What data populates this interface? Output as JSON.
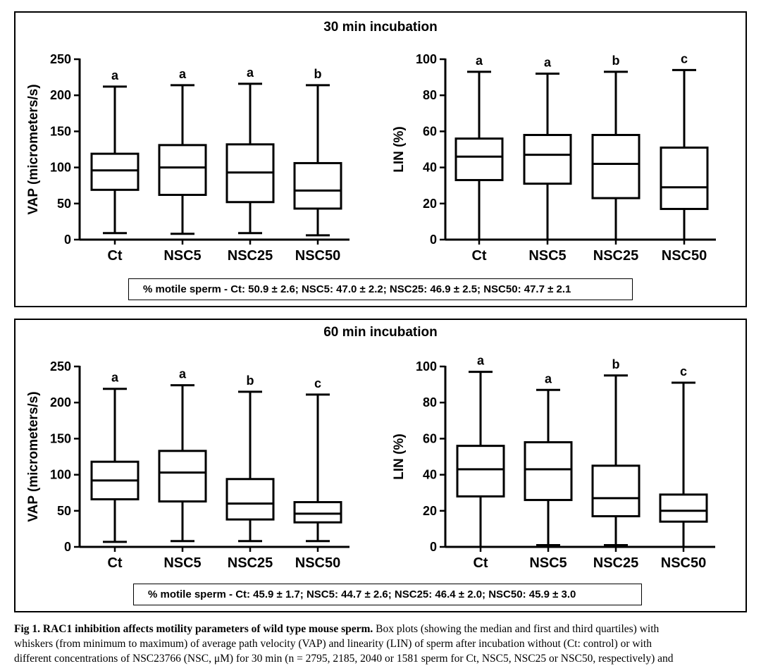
{
  "panels": [
    {
      "title": "30 min incubation",
      "summary": "% motile sperm - Ct: 50.9 ± 2.6; NSC5: 47.0 ± 2.2; NSC25: 46.9 ± 2.5; NSC50: 47.7 ± 2.1"
    },
    {
      "title": "60 min incubation",
      "summary": "% motile sperm - Ct: 45.9 ± 1.7; NSC5: 44.7 ± 2.6; NSC25: 46.4 ± 2.0; NSC50: 45.9 ± 3.0"
    }
  ],
  "caption": {
    "title": "Fig 1. RAC1 inhibition affects motility parameters of wild type mouse sperm.",
    "line1": "Box plots (showing the median and first and third quartiles) with",
    "line2": "whiskers (from minimum to maximum) of average path velocity (VAP) and linearity (LIN) of sperm after incubation without (Ct: control) or with",
    "line3": "different concentrations of NSC23766 (NSC, μM) for 30 min (n = 2795, 2185, 2040 or 1581 sperm for Ct, NSC5, NSC25 or NSC50, respectively) and"
  },
  "chart_data": [
    {
      "type": "box",
      "panel": "30 min incubation",
      "ylabel": "VAP (micrometers/s)",
      "ylim": [
        0,
        250
      ],
      "yticks": [
        0,
        50,
        100,
        150,
        200,
        250
      ],
      "categories": [
        "Ct",
        "NSC5",
        "NSC25",
        "NSC50"
      ],
      "boxes": [
        {
          "min": 9,
          "q1": 69,
          "median": 96,
          "q3": 119,
          "max": 212
        },
        {
          "min": 8,
          "q1": 62,
          "median": 100,
          "q3": 131,
          "max": 214
        },
        {
          "min": 9,
          "q1": 52,
          "median": 93,
          "q3": 132,
          "max": 216
        },
        {
          "min": 6,
          "q1": 43,
          "median": 68,
          "q3": 106,
          "max": 214
        }
      ],
      "letters": [
        "a",
        "a",
        "a",
        "b"
      ]
    },
    {
      "type": "box",
      "panel": "30 min incubation",
      "ylabel": "LIN (%)",
      "ylim": [
        0,
        100
      ],
      "yticks": [
        0,
        20,
        40,
        60,
        80,
        100
      ],
      "categories": [
        "Ct",
        "NSC5",
        "NSC25",
        "NSC50"
      ],
      "boxes": [
        {
          "min": 0,
          "q1": 33,
          "median": 46,
          "q3": 56,
          "max": 93
        },
        {
          "min": 0,
          "q1": 31,
          "median": 47,
          "q3": 58,
          "max": 92
        },
        {
          "min": 0,
          "q1": 23,
          "median": 42,
          "q3": 58,
          "max": 93
        },
        {
          "min": 0,
          "q1": 17,
          "median": 29,
          "q3": 51,
          "max": 94
        }
      ],
      "letters": [
        "a",
        "a",
        "b",
        "c"
      ]
    },
    {
      "type": "box",
      "panel": "60 min incubation",
      "ylabel": "VAP (micrometers/s)",
      "ylim": [
        0,
        250
      ],
      "yticks": [
        0,
        50,
        100,
        150,
        200,
        250
      ],
      "categories": [
        "Ct",
        "NSC5",
        "NSC25",
        "NSC50"
      ],
      "boxes": [
        {
          "min": 7,
          "q1": 66,
          "median": 92,
          "q3": 118,
          "max": 219
        },
        {
          "min": 8,
          "q1": 63,
          "median": 103,
          "q3": 133,
          "max": 224
        },
        {
          "min": 8,
          "q1": 38,
          "median": 60,
          "q3": 94,
          "max": 215
        },
        {
          "min": 8,
          "q1": 34,
          "median": 46,
          "q3": 62,
          "max": 211
        }
      ],
      "letters": [
        "a",
        "a",
        "b",
        "c"
      ]
    },
    {
      "type": "box",
      "panel": "60 min incubation",
      "ylabel": "LIN (%)",
      "ylim": [
        0,
        100
      ],
      "yticks": [
        0,
        20,
        40,
        60,
        80,
        100
      ],
      "categories": [
        "Ct",
        "NSC5",
        "NSC25",
        "NSC50"
      ],
      "boxes": [
        {
          "min": 0,
          "q1": 28,
          "median": 43,
          "q3": 56,
          "max": 97
        },
        {
          "min": 1,
          "q1": 26,
          "median": 43,
          "q3": 58,
          "max": 87
        },
        {
          "min": 1,
          "q1": 17,
          "median": 27,
          "q3": 45,
          "max": 95
        },
        {
          "min": 0,
          "q1": 14,
          "median": 20,
          "q3": 29,
          "max": 91
        }
      ],
      "letters": [
        "a",
        "a",
        "b",
        "c"
      ]
    }
  ]
}
